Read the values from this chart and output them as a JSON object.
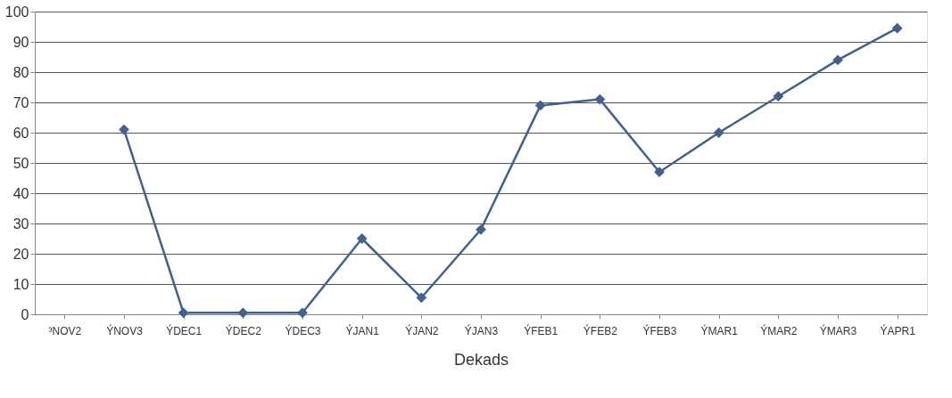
{
  "chart_data": {
    "type": "line",
    "xlabel": "Dekads",
    "categories": [
      "³NOV2",
      "ÝNOV3",
      "ÝDEC1",
      "ÝDEC2",
      "ÝDEC3",
      "ÝJAN1",
      "ÝJAN2",
      "ÝJAN3",
      "ÝFEB1",
      "ÝFEB2",
      "ÝFEB3",
      "ÝMAR1",
      "ÝMAR2",
      "ÝMAR3",
      "ÝAPR1"
    ],
    "series": [
      {
        "color": "#41618e",
        "values": [
          null,
          61,
          0.5,
          0.5,
          0.5,
          25,
          5.5,
          28,
          69,
          71,
          47,
          60,
          72,
          84,
          94.5
        ]
      }
    ],
    "ylim": [
      0,
      100
    ],
    "yticks": [
      0,
      10,
      20,
      30,
      40,
      50,
      60,
      70,
      80,
      90,
      100
    ],
    "grid": "y",
    "marker": "diamond",
    "line_style": "solid"
  }
}
